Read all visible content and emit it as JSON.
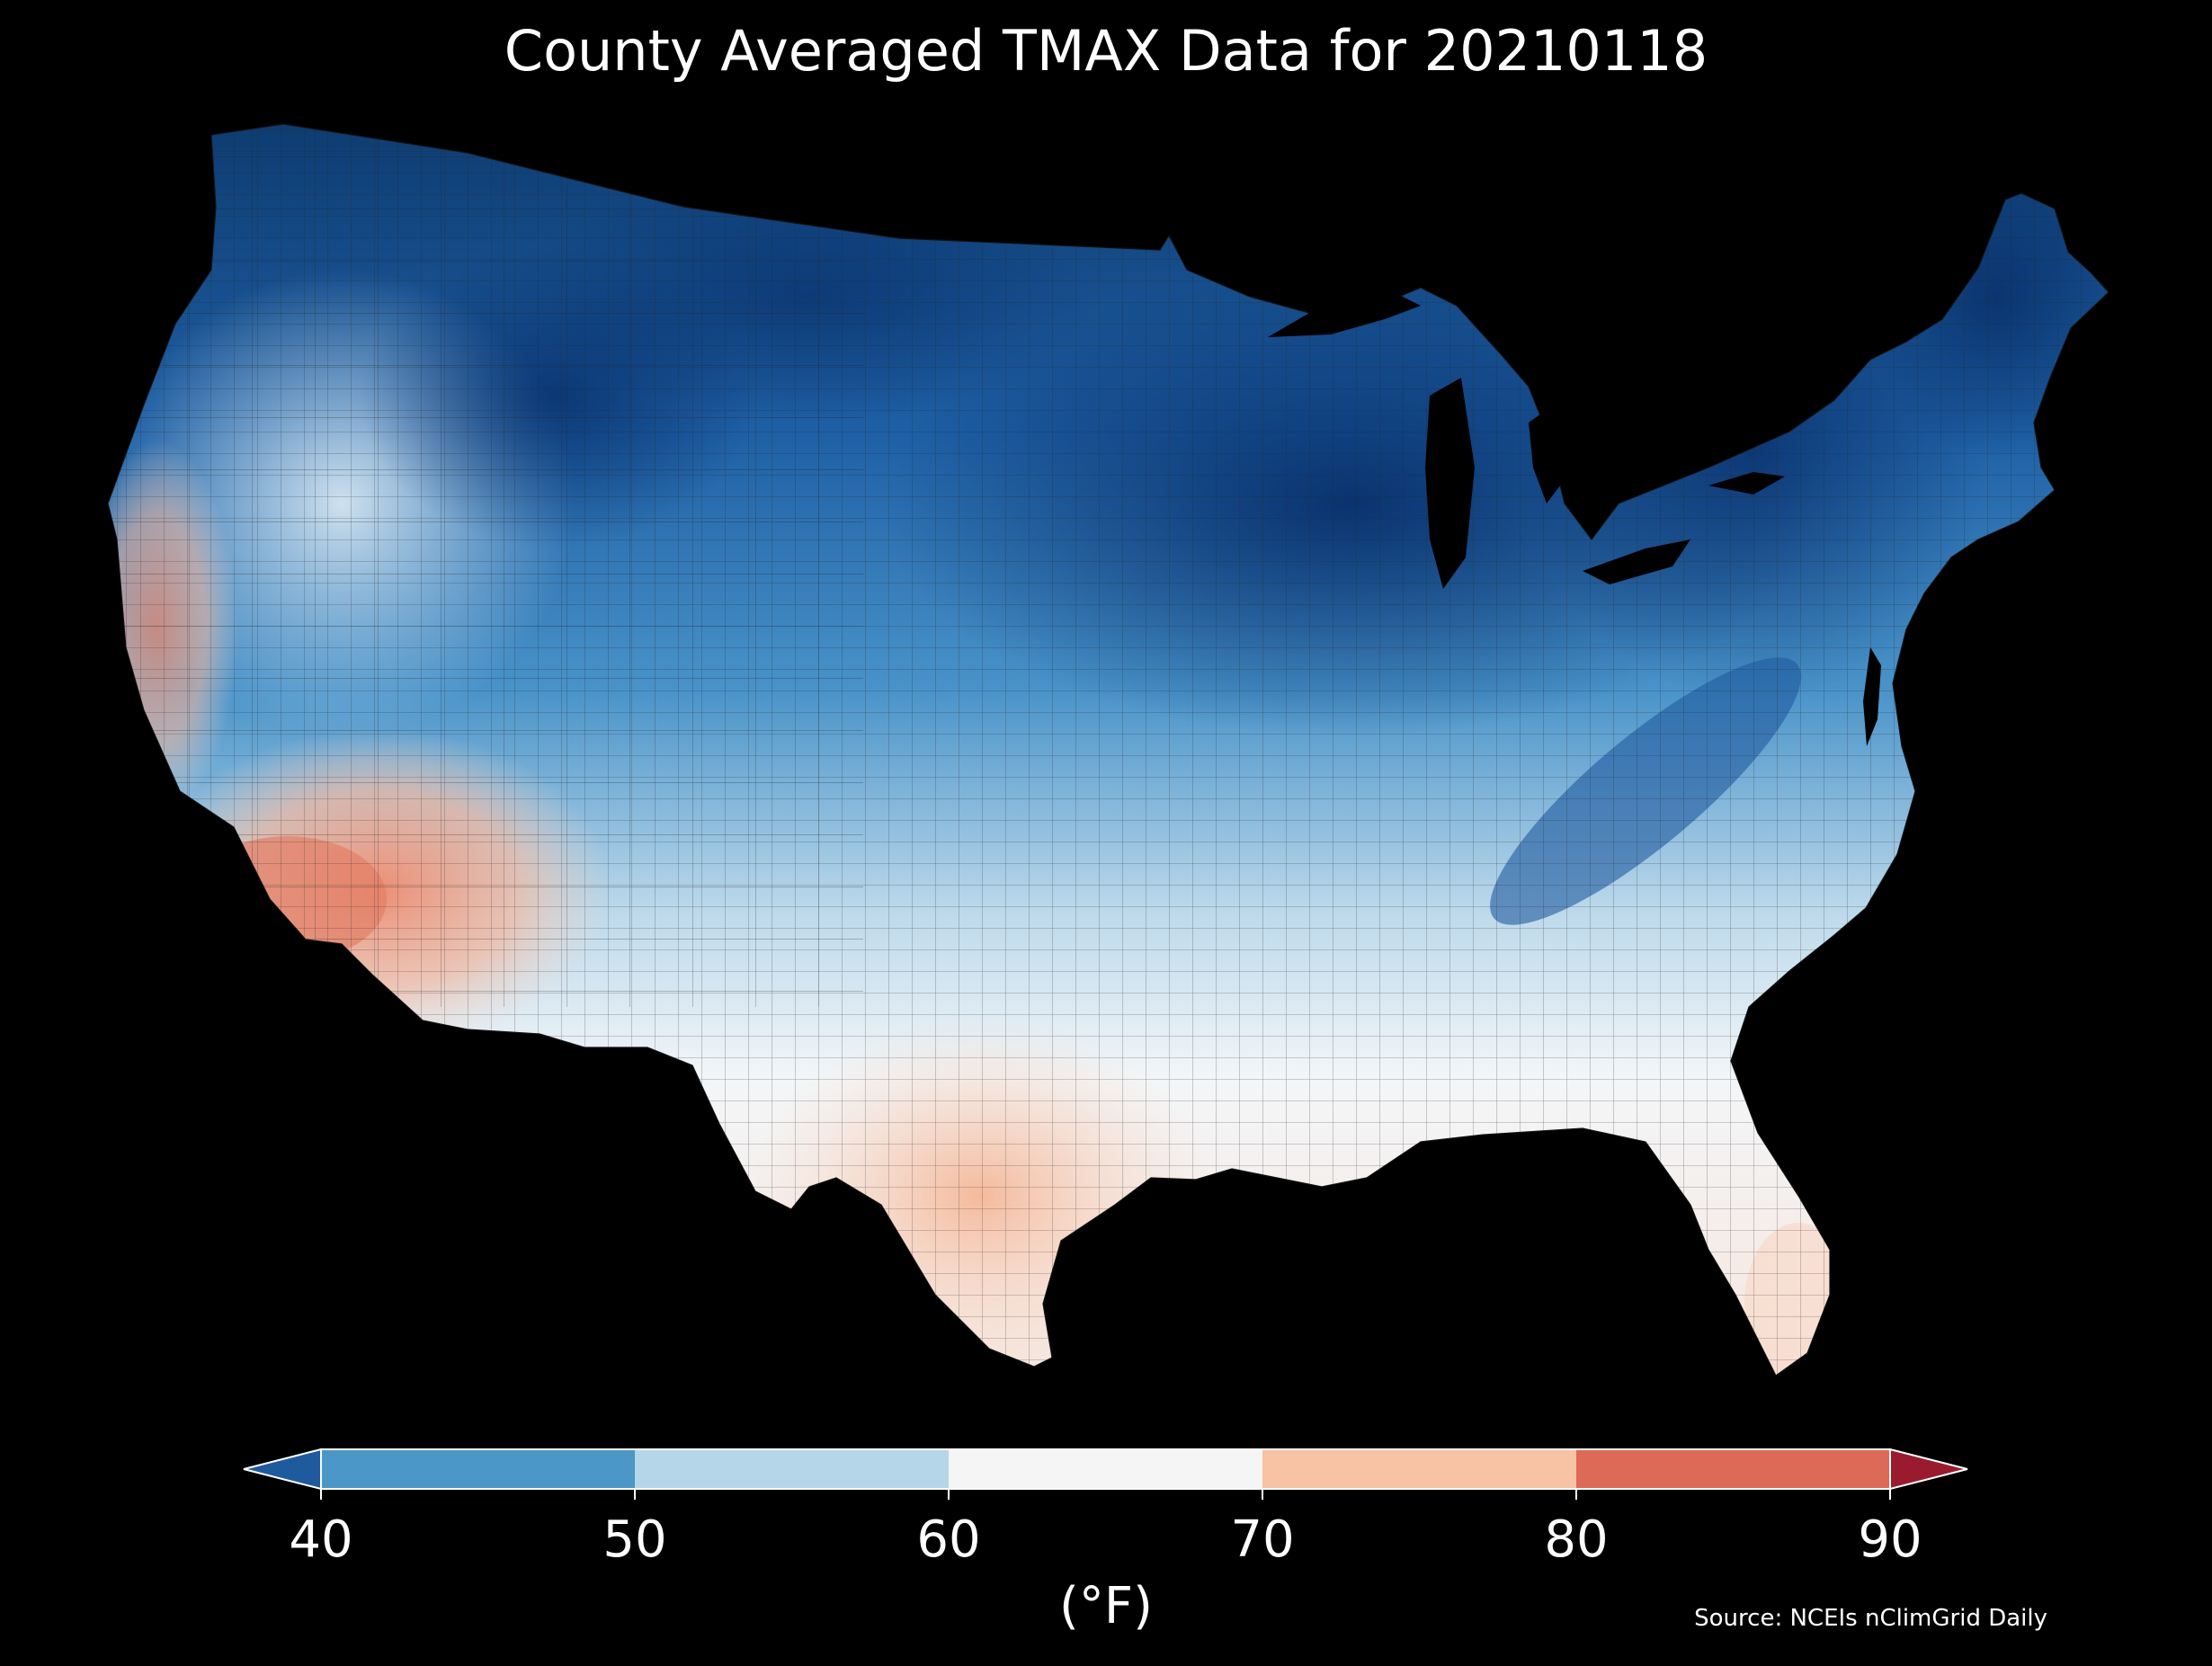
{
  "title": "County Averaged TMAX Data for 20210118",
  "colorbar": {
    "ticks": [
      "40",
      "50",
      "60",
      "70",
      "80",
      "90"
    ],
    "unit_label": "(°F)",
    "bins": [
      {
        "range": "<40",
        "color": "#1f5a9e"
      },
      {
        "range": "40-50",
        "color": "#4b97c8"
      },
      {
        "range": "50-60",
        "color": "#b5d6e9"
      },
      {
        "range": "60-70",
        "color": "#f5f5f5"
      },
      {
        "range": "70-80",
        "color": "#f8c2a5"
      },
      {
        "range": "80-90",
        "color": "#dc6a57"
      },
      {
        "range": ">90",
        "color": "#9b1b2e"
      }
    ]
  },
  "source": "Source: NCEIs nClimGrid Daily",
  "colors": {
    "background": "#000000",
    "text": "#ffffff"
  }
}
